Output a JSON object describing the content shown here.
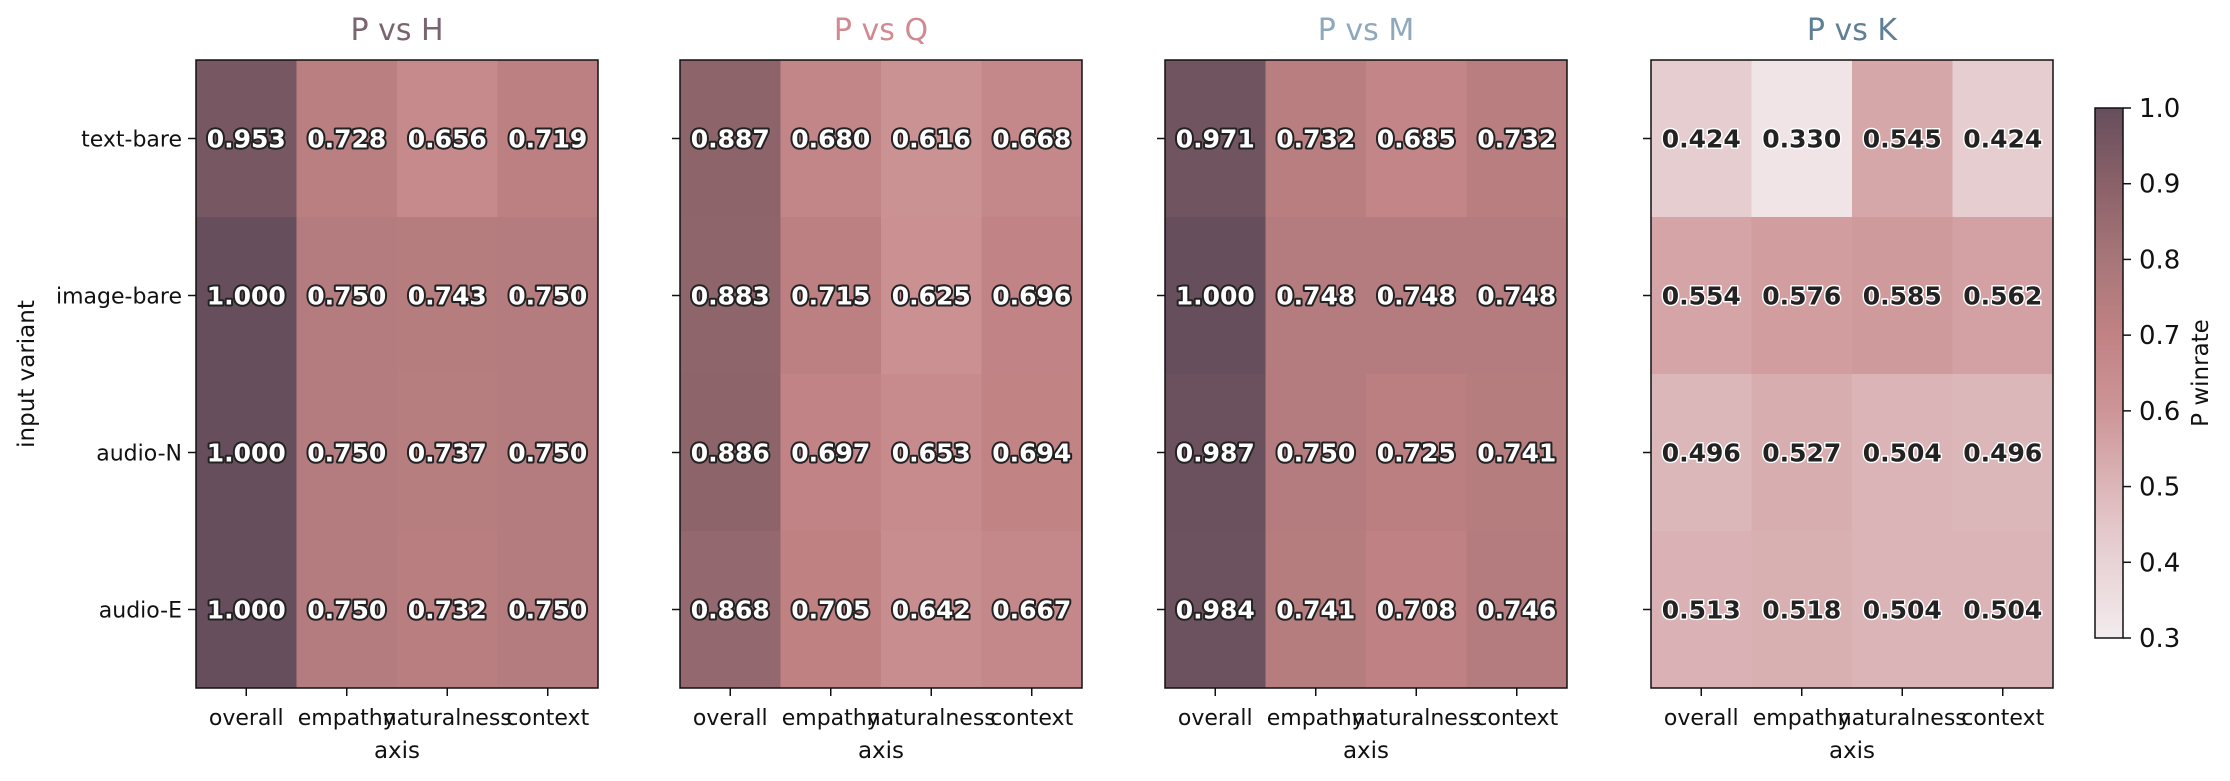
{
  "chart_data": [
    {
      "type": "heatmap",
      "title": "P vs H",
      "title_color": "#7a6470",
      "xlabel": "axis",
      "ylabel": "input variant",
      "x": [
        "overall",
        "empathy",
        "naturalness",
        "context"
      ],
      "y": [
        "text-bare",
        "image-bare",
        "audio-N",
        "audio-E"
      ],
      "values": [
        [
          0.953,
          0.728,
          0.656,
          0.719
        ],
        [
          1.0,
          0.75,
          0.743,
          0.75
        ],
        [
          1.0,
          0.75,
          0.737,
          0.75
        ],
        [
          1.0,
          0.75,
          0.732,
          0.75
        ]
      ],
      "labels": [
        [
          "0.953",
          "0.728",
          "0.656",
          "0.719"
        ],
        [
          "1.000",
          "0.750",
          "0.743",
          "0.750"
        ],
        [
          "1.000",
          "0.750",
          "0.737",
          "0.750"
        ],
        [
          "1.000",
          "0.750",
          "0.732",
          "0.750"
        ]
      ]
    },
    {
      "type": "heatmap",
      "title": "P vs Q",
      "title_color": "#cf8a92",
      "xlabel": "axis",
      "ylabel": "",
      "x": [
        "overall",
        "empathy",
        "naturalness",
        "context"
      ],
      "y": [
        "text-bare",
        "image-bare",
        "audio-N",
        "audio-E"
      ],
      "values": [
        [
          0.887,
          0.68,
          0.616,
          0.668
        ],
        [
          0.883,
          0.715,
          0.625,
          0.696
        ],
        [
          0.886,
          0.697,
          0.653,
          0.694
        ],
        [
          0.868,
          0.705,
          0.642,
          0.667
        ]
      ],
      "labels": [
        [
          "0.887",
          "0.680",
          "0.616",
          "0.668"
        ],
        [
          "0.883",
          "0.715",
          "0.625",
          "0.696"
        ],
        [
          "0.886",
          "0.697",
          "0.653",
          "0.694"
        ],
        [
          "0.868",
          "0.705",
          "0.642",
          "0.667"
        ]
      ]
    },
    {
      "type": "heatmap",
      "title": "P vs M",
      "title_color": "#8fa8bc",
      "xlabel": "axis",
      "ylabel": "",
      "x": [
        "overall",
        "empathy",
        "naturalness",
        "context"
      ],
      "y": [
        "text-bare",
        "image-bare",
        "audio-N",
        "audio-E"
      ],
      "values": [
        [
          0.971,
          0.732,
          0.685,
          0.732
        ],
        [
          1.0,
          0.748,
          0.748,
          0.748
        ],
        [
          0.987,
          0.75,
          0.725,
          0.741
        ],
        [
          0.984,
          0.741,
          0.708,
          0.746
        ]
      ],
      "labels": [
        [
          "0.971",
          "0.732",
          "0.685",
          "0.732"
        ],
        [
          "1.000",
          "0.748",
          "0.748",
          "0.748"
        ],
        [
          "0.987",
          "0.750",
          "0.725",
          "0.741"
        ],
        [
          "0.984",
          "0.741",
          "0.708",
          "0.746"
        ]
      ]
    },
    {
      "type": "heatmap",
      "title": "P vs K",
      "title_color": "#5f7f97",
      "xlabel": "axis",
      "ylabel": "",
      "x": [
        "overall",
        "empathy",
        "naturalness",
        "context"
      ],
      "y": [
        "text-bare",
        "image-bare",
        "audio-N",
        "audio-E"
      ],
      "values": [
        [
          0.424,
          0.33,
          0.545,
          0.424
        ],
        [
          0.554,
          0.576,
          0.585,
          0.562
        ],
        [
          0.496,
          0.527,
          0.504,
          0.496
        ],
        [
          0.513,
          0.518,
          0.504,
          0.504
        ]
      ],
      "labels": [
        [
          "0.424",
          "0.330",
          "0.545",
          "0.424"
        ],
        [
          "0.554",
          "0.576",
          "0.585",
          "0.562"
        ],
        [
          "0.496",
          "0.527",
          "0.504",
          "0.496"
        ],
        [
          "0.513",
          "0.518",
          "0.504",
          "0.504"
        ]
      ]
    }
  ],
  "colorbar": {
    "label": "P winrate",
    "vmin": 0.3,
    "vmax": 1.0,
    "ticks": [
      0.3,
      0.4,
      0.5,
      0.6,
      0.7,
      0.8,
      0.9,
      1.0
    ],
    "tick_labels": [
      "0.3",
      "0.4",
      "0.5",
      "0.6",
      "0.7",
      "0.8",
      "0.9",
      "1.0"
    ],
    "colormap": [
      [
        0.3,
        "#f3ecee"
      ],
      [
        0.45,
        "#e3c6c9"
      ],
      [
        0.6,
        "#cd9597"
      ],
      [
        0.7,
        "#c18284"
      ],
      [
        0.8,
        "#a77679"
      ],
      [
        0.9,
        "#8a6169"
      ],
      [
        1.0,
        "#664e5c"
      ]
    ]
  },
  "styling": {
    "label_threshold": 0.6,
    "dark_label_fill": "#ffffff",
    "dark_label_stroke": "#222222",
    "light_label_fill": "#222222",
    "light_label_stroke": "#ffffff"
  }
}
